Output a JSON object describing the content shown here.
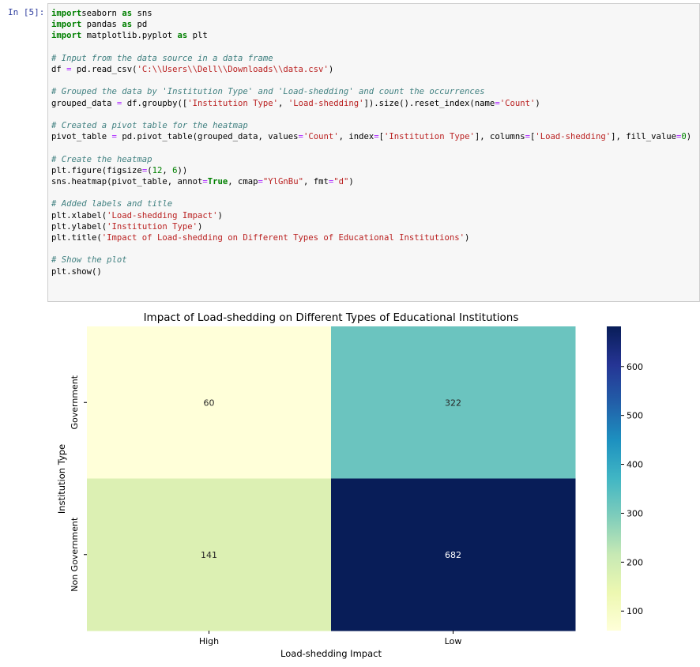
{
  "cell": {
    "prompt": "In [5]:",
    "code_lines": [
      [
        [
          "kw",
          "import"
        ],
        [
          "",
          "seaborn "
        ],
        [
          "kw",
          "as"
        ],
        [
          "",
          " sns"
        ]
      ],
      [
        [
          "kw",
          "import"
        ],
        [
          "",
          " pandas "
        ],
        [
          "kw",
          "as"
        ],
        [
          "",
          " pd"
        ]
      ],
      [
        [
          "kw",
          "import"
        ],
        [
          "",
          " matplotlib.pyplot "
        ],
        [
          "kw",
          "as"
        ],
        [
          "",
          " plt"
        ]
      ],
      [],
      [
        [
          "com",
          "# Input from the data source in a data frame"
        ]
      ],
      [
        [
          "",
          "df "
        ],
        [
          "op",
          "="
        ],
        [
          "",
          " pd.read_csv("
        ],
        [
          "str",
          "'C:\\\\Users\\\\Dell\\\\Downloads\\\\data.csv'"
        ],
        [
          "",
          ")"
        ]
      ],
      [],
      [
        [
          "com",
          "# Grouped the data by 'Institution Type' and 'Load-shedding' and count the occurrences"
        ]
      ],
      [
        [
          "",
          "grouped_data "
        ],
        [
          "op",
          "="
        ],
        [
          "",
          " df.groupby(["
        ],
        [
          "str",
          "'Institution Type'"
        ],
        [
          "",
          ", "
        ],
        [
          "str",
          "'Load-shedding'"
        ],
        [
          "",
          "]).size().reset_index(name"
        ],
        [
          "op",
          "="
        ],
        [
          "str",
          "'Count'"
        ],
        [
          "",
          ")"
        ]
      ],
      [],
      [
        [
          "com",
          "# Created a pivot table for the heatmap"
        ]
      ],
      [
        [
          "",
          "pivot_table "
        ],
        [
          "op",
          "="
        ],
        [
          "",
          " pd.pivot_table(grouped_data, values"
        ],
        [
          "op",
          "="
        ],
        [
          "str",
          "'Count'"
        ],
        [
          "",
          ", index"
        ],
        [
          "op",
          "="
        ],
        [
          "",
          "["
        ],
        [
          "str",
          "'Institution Type'"
        ],
        [
          "",
          "], columns"
        ],
        [
          "op",
          "="
        ],
        [
          "",
          "["
        ],
        [
          "str",
          "'Load-shedding'"
        ],
        [
          "",
          "], fill_value"
        ],
        [
          "op",
          "="
        ],
        [
          "num",
          "0"
        ],
        [
          "",
          ")"
        ]
      ],
      [],
      [
        [
          "com",
          "# Create the heatmap"
        ]
      ],
      [
        [
          "",
          "plt.figure(figsize"
        ],
        [
          "op",
          "="
        ],
        [
          "",
          "("
        ],
        [
          "num",
          "12"
        ],
        [
          "",
          ", "
        ],
        [
          "num",
          "6"
        ],
        [
          "",
          "))"
        ]
      ],
      [
        [
          "",
          "sns.heatmap(pivot_table, annot"
        ],
        [
          "op",
          "="
        ],
        [
          "kw",
          "True"
        ],
        [
          "",
          ", cmap"
        ],
        [
          "op",
          "="
        ],
        [
          "str",
          "\"YlGnBu\""
        ],
        [
          "",
          ", fmt"
        ],
        [
          "op",
          "="
        ],
        [
          "str",
          "\"d\""
        ],
        [
          "",
          ")"
        ]
      ],
      [],
      [
        [
          "com",
          "# Added labels and title"
        ]
      ],
      [
        [
          "",
          "plt.xlabel("
        ],
        [
          "str",
          "'Load-shedding Impact'"
        ],
        [
          "",
          ")"
        ]
      ],
      [
        [
          "",
          "plt.ylabel("
        ],
        [
          "str",
          "'Institution Type'"
        ],
        [
          "",
          ")"
        ]
      ],
      [
        [
          "",
          "plt.title("
        ],
        [
          "str",
          "'Impact of Load-shedding on Different Types of Educational Institutions'"
        ],
        [
          "",
          ")"
        ]
      ],
      [],
      [
        [
          "com",
          "# Show the plot"
        ]
      ],
      [
        [
          "",
          "plt.show()"
        ]
      ]
    ]
  },
  "chart_data": {
    "type": "heatmap",
    "title": "Impact of Load-shedding on Different Types of Educational Institutions",
    "xlabel": "Load-shedding Impact",
    "ylabel": "Institution Type",
    "x_categories": [
      "High",
      "Low"
    ],
    "y_categories": [
      "Government",
      "Non Government"
    ],
    "values": [
      [
        60,
        322
      ],
      [
        141,
        682
      ]
    ],
    "cell_colors": [
      [
        "#ffffd9",
        "#6bc4bf"
      ],
      [
        "#dcf0b3",
        "#081d58"
      ]
    ],
    "annotation_colors": [
      [
        "#262626",
        "#262626"
      ],
      [
        "#262626",
        "#ffffff"
      ]
    ],
    "colorbar": {
      "range": [
        60,
        682
      ],
      "ticks": [
        100,
        200,
        300,
        400,
        500,
        600
      ],
      "tick_labels": [
        "100",
        "200",
        "300",
        "400",
        "500",
        "600"
      ],
      "cmap": "YlGnBu"
    }
  }
}
